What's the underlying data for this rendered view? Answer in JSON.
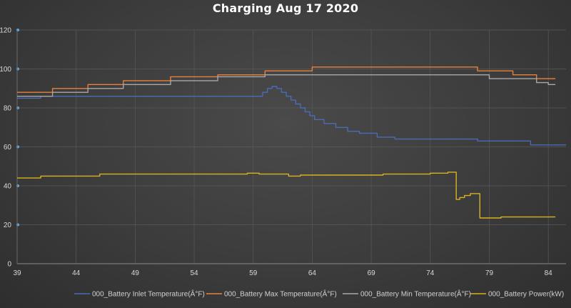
{
  "chart_data": {
    "type": "line",
    "title": "Charging Aug 17 2020",
    "xlabel": "",
    "ylabel": "",
    "xlim": [
      39,
      85.5
    ],
    "ylim": [
      0,
      120
    ],
    "x_ticks": [
      39,
      44,
      49,
      54,
      59,
      64,
      69,
      74,
      79,
      84
    ],
    "y_ticks": [
      0,
      20,
      40,
      60,
      80,
      100,
      120
    ],
    "grid": true,
    "legend_position": "bottom",
    "series": [
      {
        "name": "000_Battery Inlet Temperature(Â°F)",
        "color": "#4a6bb5",
        "step": true,
        "x": [
          39,
          41,
          59.8,
          60.2,
          60.6,
          61.0,
          61.4,
          61.8,
          62.2,
          62.6,
          63.0,
          63.4,
          63.8,
          64.2,
          65.0,
          66.0,
          67.0,
          68.0,
          69.5,
          71.0,
          75.0,
          78.0,
          81.0,
          82.5,
          85.5
        ],
        "y": [
          85,
          86,
          88,
          90,
          91,
          90,
          88,
          86,
          84,
          82,
          80,
          78,
          76,
          74,
          72,
          70,
          68,
          67,
          65,
          64,
          64,
          63,
          63,
          61,
          61
        ]
      },
      {
        "name": "000_Battery Max Temperature(Â°F)",
        "color": "#e8803c",
        "step": true,
        "x": [
          39,
          42,
          45,
          48,
          52,
          56,
          60,
          64,
          78,
          81,
          83,
          85.5
        ],
        "y": [
          88,
          90,
          92,
          94,
          96,
          97,
          99,
          101,
          99,
          97,
          95,
          95
        ],
        "draw_x_end": 84.6
      },
      {
        "name": "000_Battery Min Temperature(Â°F)",
        "color": "#a8a8a8",
        "step": true,
        "x": [
          39,
          42,
          45,
          48,
          52,
          56,
          60,
          64,
          78,
          79,
          81,
          83,
          84,
          85.5
        ],
        "y": [
          86,
          88,
          90,
          92,
          94,
          96,
          97,
          97,
          97,
          95,
          95,
          93,
          92,
          92
        ],
        "draw_x_end": 84.6
      },
      {
        "name": "000_Battery Power(kW)",
        "color": "#d9b21f",
        "step": true,
        "x": [
          39,
          41,
          43,
          46,
          52,
          57,
          58.5,
          59.5,
          60.5,
          62,
          63,
          66,
          70,
          74,
          75.5,
          76.2,
          76.5,
          76.9,
          77.4,
          77.8,
          78.2,
          80,
          82,
          84,
          85.5
        ],
        "y": [
          44,
          45,
          45,
          46,
          46,
          46,
          46.5,
          46,
          46,
          45,
          45.5,
          45.5,
          46,
          46.5,
          47,
          33,
          34,
          35,
          36,
          36,
          23.5,
          24,
          24,
          24,
          24
        ],
        "draw_x_end": 84.6
      }
    ]
  }
}
